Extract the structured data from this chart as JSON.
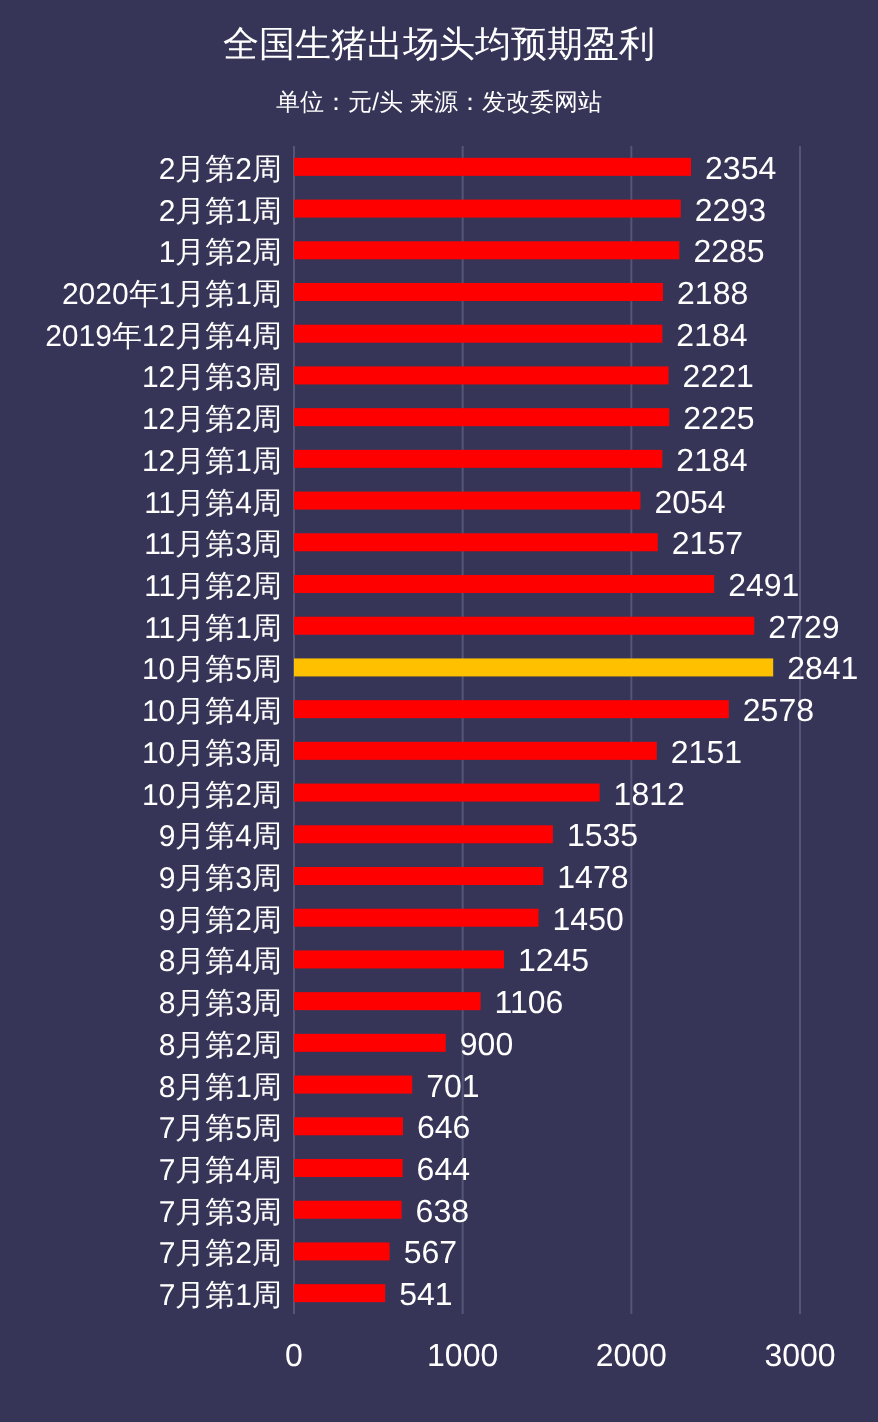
{
  "chart_data": {
    "type": "bar",
    "orientation": "horizontal",
    "title": "全国生猪出场头均预期盈利",
    "subtitle": "单位：元/头 来源：发改委网站",
    "categories": [
      "2月第2周",
      "2月第1周",
      "1月第2周",
      "2020年1月第1周",
      "2019年12月第4周",
      "12月第3周",
      "12月第2周",
      "12月第1周",
      "11月第4周",
      "11月第3周",
      "11月第2周",
      "11月第1周",
      "10月第5周",
      "10月第4周",
      "10月第3周",
      "10月第2周",
      "9月第4周",
      "9月第3周",
      "9月第2周",
      "8月第4周",
      "8月第3周",
      "8月第2周",
      "8月第1周",
      "7月第5周",
      "7月第4周",
      "7月第3周",
      "7月第2周",
      "7月第1周"
    ],
    "values": [
      2354,
      2293,
      2285,
      2188,
      2184,
      2221,
      2225,
      2184,
      2054,
      2157,
      2491,
      2729,
      2841,
      2578,
      2151,
      1812,
      1535,
      1478,
      1450,
      1245,
      1106,
      900,
      701,
      646,
      644,
      638,
      567,
      541
    ],
    "colors": [
      "#ff0000",
      "#ff0000",
      "#ff0000",
      "#ff0000",
      "#ff0000",
      "#ff0000",
      "#ff0000",
      "#ff0000",
      "#ff0000",
      "#ff0000",
      "#ff0000",
      "#ff0000",
      "#ffc000",
      "#ff0000",
      "#ff0000",
      "#ff0000",
      "#ff0000",
      "#ff0000",
      "#ff0000",
      "#ff0000",
      "#ff0000",
      "#ff0000",
      "#ff0000",
      "#ff0000",
      "#ff0000",
      "#ff0000",
      "#ff0000",
      "#ff0000"
    ],
    "xlim": [
      0,
      3000
    ],
    "xticks": [
      0,
      1000,
      2000,
      3000
    ],
    "grid": "x",
    "data_labels": true
  }
}
